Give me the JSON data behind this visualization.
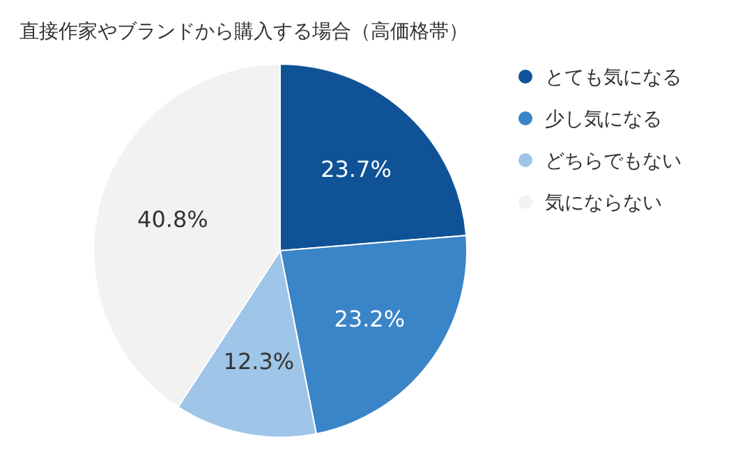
{
  "chart_data": {
    "type": "pie",
    "title": "直接作家やブランドから購入する場合（高価格帯）",
    "categories": [
      "とても気になる",
      "少し気になる",
      "どちらでもない",
      "気にならない"
    ],
    "values": [
      23.7,
      23.2,
      12.3,
      40.8
    ],
    "value_labels": [
      "23.7%",
      "23.2%",
      "12.3%",
      "40.8%"
    ],
    "colors": [
      "#0f5396",
      "#3a84c8",
      "#9fc5e8",
      "#f2f2f2"
    ],
    "legend": "right"
  }
}
